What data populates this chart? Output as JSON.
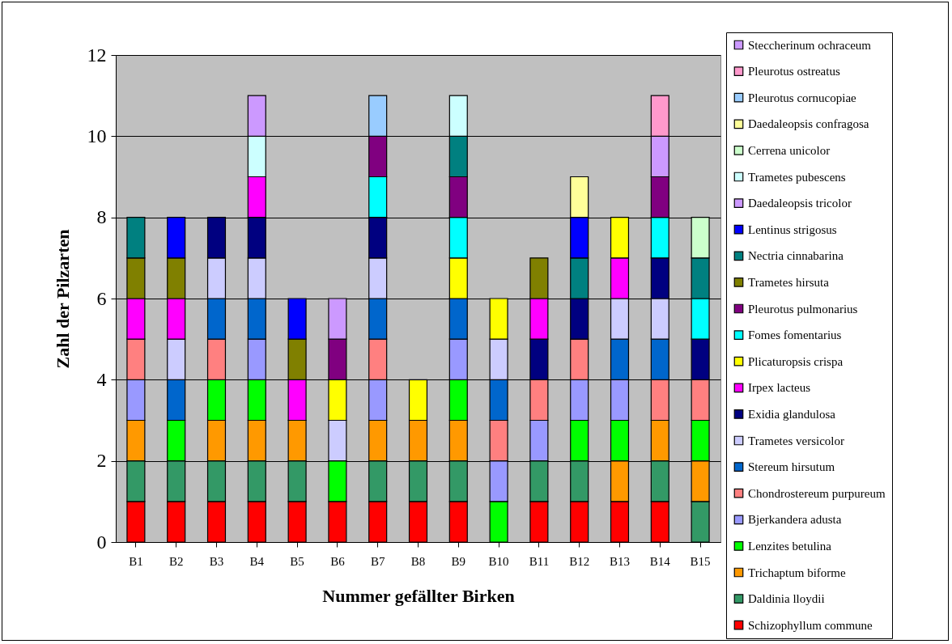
{
  "chart_data": {
    "type": "bar",
    "stacked": true,
    "xlabel": "Nummer gefällter Birken",
    "ylabel": "Zahl der Pilzarten",
    "categories": [
      "B1",
      "B2",
      "B3",
      "B4",
      "B5",
      "B6",
      "B7",
      "B8",
      "B9",
      "B10",
      "B11",
      "B12",
      "B13",
      "B14",
      "B15"
    ],
    "ylim": [
      0,
      12
    ],
    "yticks": [
      0,
      2,
      4,
      6,
      8,
      10,
      12
    ],
    "grid": "y",
    "legend": "right",
    "series": [
      {
        "name": "Schizophyllum commune",
        "color": "#ff0000",
        "values": [
          1,
          1,
          1,
          1,
          1,
          1,
          1,
          1,
          1,
          0,
          1,
          1,
          1,
          1,
          0
        ]
      },
      {
        "name": "Daldinia lloydii",
        "color": "#339966",
        "values": [
          1,
          1,
          1,
          1,
          1,
          0,
          1,
          1,
          1,
          0,
          1,
          1,
          0,
          1,
          1
        ]
      },
      {
        "name": "Trichaptum biforme",
        "color": "#ff9900",
        "values": [
          1,
          0,
          1,
          1,
          1,
          0,
          1,
          1,
          1,
          0,
          0,
          0,
          1,
          1,
          1
        ]
      },
      {
        "name": "Lenzites betulina",
        "color": "#00ff00",
        "values": [
          0,
          1,
          1,
          1,
          0,
          1,
          0,
          0,
          1,
          1,
          0,
          1,
          1,
          0,
          1
        ]
      },
      {
        "name": "Bjerkandera adusta",
        "color": "#9999ff",
        "values": [
          1,
          0,
          0,
          1,
          0,
          0,
          1,
          0,
          1,
          1,
          1,
          1,
          1,
          0,
          0
        ]
      },
      {
        "name": "Chondrostereum purpureum",
        "color": "#ff8080",
        "values": [
          1,
          0,
          1,
          0,
          0,
          0,
          1,
          0,
          0,
          1,
          1,
          1,
          0,
          1,
          1
        ]
      },
      {
        "name": "Stereum hirsutum",
        "color": "#0066cc",
        "values": [
          0,
          1,
          1,
          1,
          0,
          0,
          1,
          0,
          1,
          1,
          0,
          0,
          1,
          1,
          0
        ]
      },
      {
        "name": "Trametes versicolor",
        "color": "#ccccff",
        "values": [
          0,
          1,
          1,
          1,
          0,
          1,
          1,
          0,
          0,
          1,
          0,
          0,
          1,
          1,
          0
        ]
      },
      {
        "name": "Exidia glandulosa",
        "color": "#000080",
        "values": [
          0,
          0,
          1,
          1,
          0,
          0,
          1,
          0,
          0,
          0,
          1,
          1,
          0,
          1,
          1
        ]
      },
      {
        "name": "Irpex lacteus",
        "color": "#ff00ff",
        "values": [
          1,
          1,
          0,
          1,
          1,
          0,
          0,
          0,
          0,
          0,
          1,
          0,
          1,
          0,
          0
        ]
      },
      {
        "name": "Plicaturopsis crispa",
        "color": "#ffff00",
        "values": [
          0,
          0,
          0,
          0,
          0,
          1,
          0,
          1,
          1,
          1,
          0,
          0,
          1,
          0,
          0
        ]
      },
      {
        "name": "Fomes fomentarius",
        "color": "#00ffff",
        "values": [
          0,
          0,
          0,
          0,
          0,
          0,
          1,
          0,
          1,
          0,
          0,
          0,
          0,
          1,
          1
        ]
      },
      {
        "name": "Pleurotus pulmonarius",
        "color": "#800080",
        "values": [
          0,
          0,
          0,
          0,
          0,
          1,
          1,
          0,
          1,
          0,
          0,
          0,
          0,
          1,
          0
        ]
      },
      {
        "name": "Trametes hirsuta",
        "color": "#808000",
        "values": [
          1,
          1,
          0,
          0,
          1,
          0,
          0,
          0,
          0,
          0,
          1,
          0,
          0,
          0,
          0
        ]
      },
      {
        "name": "Nectria cinnabarina",
        "color": "#008080",
        "values": [
          1,
          0,
          0,
          0,
          0,
          0,
          0,
          0,
          1,
          0,
          0,
          1,
          0,
          0,
          1
        ]
      },
      {
        "name": "Lentinus strigosus",
        "color": "#0000ff",
        "values": [
          0,
          1,
          0,
          0,
          1,
          0,
          0,
          0,
          0,
          0,
          0,
          1,
          0,
          0,
          0
        ]
      },
      {
        "name": "Daedaleopsis tricolor",
        "color": "#cc99ff",
        "values": [
          0,
          0,
          0,
          0,
          0,
          1,
          0,
          0,
          0,
          0,
          0,
          0,
          0,
          1,
          0
        ]
      },
      {
        "name": "Trametes pubescens",
        "color": "#ccffff",
        "values": [
          0,
          0,
          0,
          1,
          0,
          0,
          0,
          0,
          1,
          0,
          0,
          0,
          0,
          0,
          0
        ]
      },
      {
        "name": "Cerrena unicolor",
        "color": "#ccffcc",
        "values": [
          0,
          0,
          0,
          0,
          0,
          0,
          0,
          0,
          0,
          0,
          0,
          0,
          0,
          0,
          1
        ]
      },
      {
        "name": "Daedaleopsis confragosa",
        "color": "#ffff99",
        "values": [
          0,
          0,
          0,
          0,
          0,
          0,
          0,
          0,
          0,
          0,
          0,
          1,
          0,
          0,
          0
        ]
      },
      {
        "name": "Pleurotus cornucopiae",
        "color": "#99ccff",
        "values": [
          0,
          0,
          0,
          0,
          0,
          0,
          1,
          0,
          0,
          0,
          0,
          0,
          0,
          0,
          0
        ]
      },
      {
        "name": "Pleurotus ostreatus",
        "color": "#ff99cc",
        "values": [
          0,
          0,
          0,
          0,
          0,
          0,
          0,
          0,
          0,
          0,
          0,
          0,
          0,
          1,
          0
        ]
      },
      {
        "name": "Steccherinum ochraceum",
        "color": "#cc99ff",
        "values": [
          0,
          0,
          0,
          1,
          0,
          0,
          0,
          0,
          0,
          0,
          0,
          0,
          0,
          0,
          0
        ]
      }
    ]
  }
}
